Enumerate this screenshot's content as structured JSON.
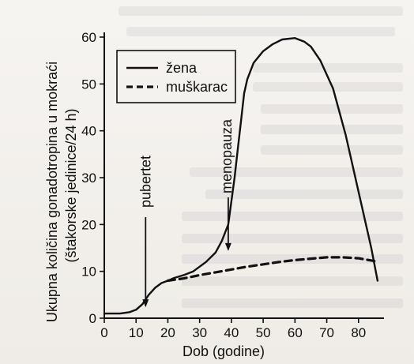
{
  "chart_data": {
    "type": "line",
    "title": "",
    "xlabel": "Dob (godine)",
    "ylabel": "Ukupna količina gonadotropina u mokraći",
    "ylabel_sub": "(štakorske jedinice/24 h)",
    "xlim": [
      0,
      90
    ],
    "ylim": [
      0,
      60
    ],
    "x_ticks": [
      0,
      10,
      20,
      30,
      40,
      50,
      60,
      70,
      80
    ],
    "y_ticks": [
      0,
      10,
      20,
      30,
      40,
      50,
      60
    ],
    "grid": false,
    "legend_position": "top-left",
    "series": [
      {
        "name": "žena",
        "style": "solid",
        "color": "#111111",
        "x": [
          0,
          5,
          8,
          10,
          12,
          14,
          16,
          18,
          20,
          22,
          25,
          28,
          30,
          32,
          35,
          37,
          39,
          40,
          41,
          42,
          43,
          44,
          45,
          47,
          50,
          53,
          56,
          60,
          63,
          65,
          68,
          72,
          76,
          80,
          84,
          86
        ],
        "y": [
          1,
          1,
          1.3,
          1.8,
          3,
          5,
          6.5,
          7.5,
          8,
          8.6,
          9.2,
          10,
          11,
          12,
          14,
          16.5,
          20,
          25,
          30,
          36,
          42,
          48,
          51,
          54.5,
          57,
          58.5,
          59.5,
          59.8,
          59,
          58,
          55,
          49,
          39,
          27,
          15,
          8
        ]
      },
      {
        "name": "muškarac",
        "style": "dashed",
        "color": "#111111",
        "x": [
          20,
          25,
          30,
          35,
          40,
          45,
          50,
          55,
          60,
          65,
          70,
          75,
          80,
          85
        ],
        "y": [
          8,
          8.5,
          9.2,
          9.8,
          10.4,
          11,
          11.5,
          12,
          12.4,
          12.7,
          13,
          13,
          12.8,
          12.2
        ]
      }
    ],
    "annotations": [
      {
        "text": "pubertet",
        "x": 13,
        "y": 2
      },
      {
        "text": "menopauza",
        "x": 40,
        "y": 14
      }
    ]
  }
}
